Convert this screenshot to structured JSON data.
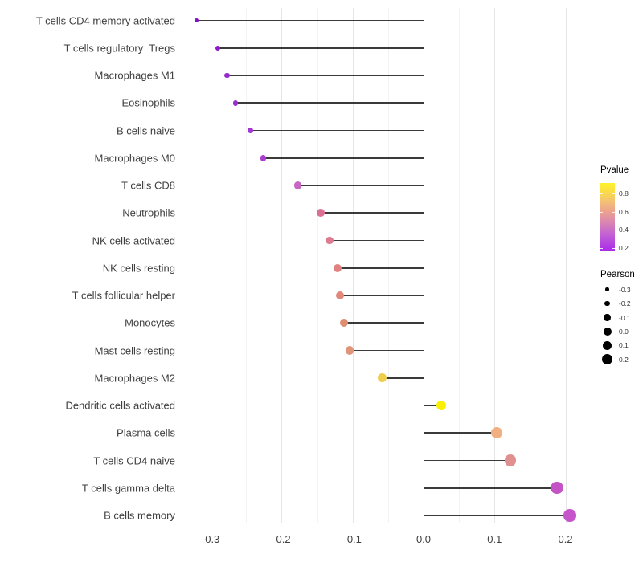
{
  "chart_data": {
    "type": "lollipop",
    "title": "",
    "xlabel": "",
    "ylabel": "",
    "grid": "major+minor vertical, light gray on white",
    "stem_color": "#3a3a3a",
    "x_axis": {
      "tick_labels": [
        "-0.3",
        "-0.2",
        "-0.1",
        "0.0",
        "0.1",
        "0.2"
      ],
      "tick_values": [
        -0.3,
        -0.2,
        -0.1,
        0.0,
        0.1,
        0.2
      ],
      "range": [
        -0.345,
        0.232
      ]
    },
    "rows": [
      {
        "label": "T cells CD4 memory activated",
        "pearson": -0.32,
        "color": "#8510cb"
      },
      {
        "label": "T cells regulatory  Tregs",
        "pearson": -0.29,
        "color": "#8e17d0"
      },
      {
        "label": "Macrophages M1",
        "pearson": -0.277,
        "color": "#9629ce"
      },
      {
        "label": "Eosinophils",
        "pearson": -0.265,
        "color": "#9b2ed2"
      },
      {
        "label": "B cells naive",
        "pearson": -0.244,
        "color": "#a435d4"
      },
      {
        "label": "Macrophages M0",
        "pearson": -0.226,
        "color": "#ac3dd2"
      },
      {
        "label": "T cells CD8",
        "pearson": -0.177,
        "color": "#c767c3"
      },
      {
        "label": "Neutrophils",
        "pearson": -0.145,
        "color": "#db7095"
      },
      {
        "label": "NK cells activated",
        "pearson": -0.133,
        "color": "#dd7b90"
      },
      {
        "label": "NK cells resting",
        "pearson": -0.121,
        "color": "#e08380"
      },
      {
        "label": "T cells follicular helper",
        "pearson": -0.118,
        "color": "#e2887b"
      },
      {
        "label": "Monocytes",
        "pearson": -0.112,
        "color": "#de8e73"
      },
      {
        "label": "Mast cells resting",
        "pearson": -0.104,
        "color": "#e09478"
      },
      {
        "label": "Macrophages M2",
        "pearson": -0.058,
        "color": "#efce4d"
      },
      {
        "label": "Dendritic cells activated",
        "pearson": 0.025,
        "color": "#f8f000"
      },
      {
        "label": "Plasma cells",
        "pearson": 0.103,
        "color": "#f0b081"
      },
      {
        "label": "T cells CD4 naive",
        "pearson": 0.122,
        "color": "#e19090"
      },
      {
        "label": "T cells gamma delta",
        "pearson": 0.188,
        "color": "#c454c6"
      },
      {
        "label": "B cells memory",
        "pearson": 0.206,
        "color": "#c654cb"
      }
    ],
    "legend_pvalue": {
      "title": "Pvalue",
      "tick_labels": [
        "0.8",
        "0.6",
        "0.4",
        "0.2"
      ],
      "tick_values": [
        0.8,
        0.6,
        0.4,
        0.2
      ],
      "bar_value_top": 0.92,
      "bar_value_bottom": 0.164,
      "gradient_stops_bottom_to_top": [
        "#a82be8 0%",
        "#c05bd8 22%",
        "#dd8aac 45%",
        "#eb9f8f 57%",
        "#f4be78 72%",
        "#fbe23f 90%",
        "#fcf32b 100%"
      ]
    },
    "legend_pearson": {
      "title": "Pearson",
      "items": [
        {
          "label": "-0.3",
          "size": 4.5
        },
        {
          "label": "-0.2",
          "size": 6.5
        },
        {
          "label": "-0.1",
          "size": 8.5
        },
        {
          "label": "0.0",
          "size": 10
        },
        {
          "label": "0.1",
          "size": 11.5
        },
        {
          "label": "0.2",
          "size": 13
        }
      ]
    }
  }
}
